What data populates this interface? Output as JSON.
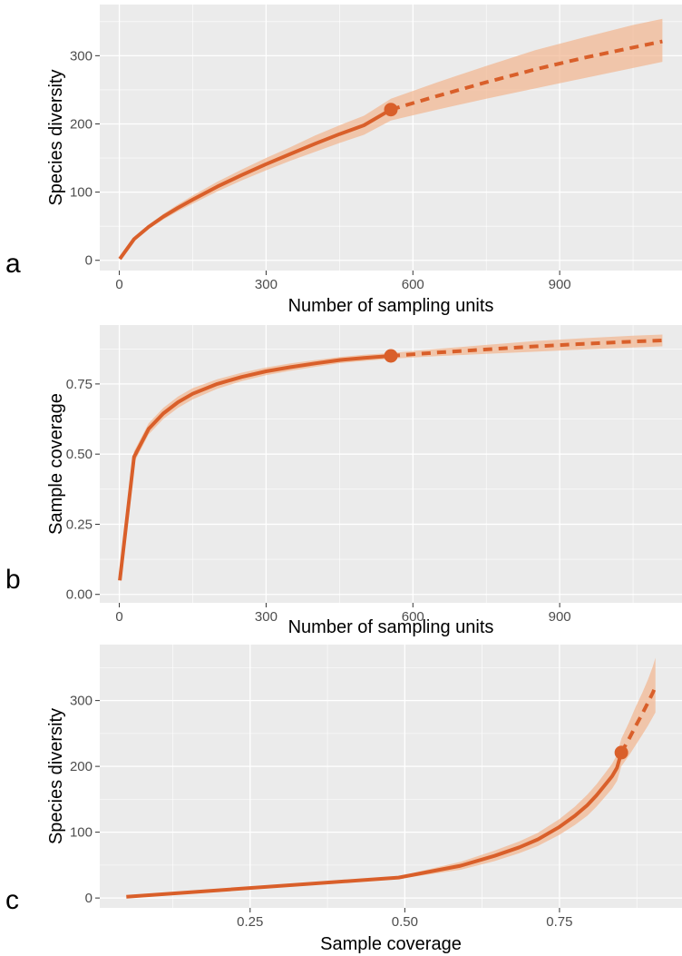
{
  "colors": {
    "series": "#d95f2a",
    "band": "#f2b58e",
    "panel_background": "#ebebeb"
  },
  "chart_data": [
    {
      "panel_label": "a",
      "type": "line",
      "xlabel": "Number of sampling units",
      "ylabel": "Species diversity",
      "xlim": [
        -40,
        1150
      ],
      "ylim": [
        -15,
        375
      ],
      "xticks": [
        0,
        300,
        600,
        900
      ],
      "yticks": [
        0,
        100,
        200,
        300
      ],
      "xtick_labels": [
        "0",
        "300",
        "600",
        "900"
      ],
      "ytick_labels": [
        "0",
        "100",
        "200",
        "300"
      ],
      "grid": true,
      "series": [
        {
          "segment": "interpolated",
          "style": "solid",
          "x": [
            1,
            30,
            60,
            90,
            120,
            150,
            200,
            250,
            300,
            350,
            400,
            450,
            500,
            555
          ],
          "y": [
            2,
            31,
            49,
            64,
            77,
            89,
            108,
            125,
            141,
            156,
            171,
            185,
            198,
            221
          ],
          "lower": [
            2,
            29,
            46,
            60,
            72,
            83,
            101,
            117,
            132,
            146,
            159,
            172,
            184,
            205
          ],
          "upper": [
            2,
            33,
            52,
            68,
            82,
            95,
            115,
            133,
            150,
            166,
            183,
            198,
            212,
            237
          ]
        },
        {
          "segment": "extrapolated",
          "style": "dashed",
          "x": [
            555,
            650,
            750,
            850,
            950,
            1050,
            1110
          ],
          "y": [
            221,
            241,
            261,
            280,
            297,
            312,
            321
          ],
          "lower": [
            205,
            221,
            237,
            252,
            267,
            282,
            291
          ],
          "upper": [
            237,
            261,
            285,
            308,
            327,
            345,
            354
          ]
        }
      ],
      "reference_point": {
        "x": 555,
        "y": 221
      }
    },
    {
      "panel_label": "b",
      "type": "line",
      "xlabel": "Number of sampling units",
      "ylabel": "Sample coverage",
      "xlim": [
        -40,
        1150
      ],
      "ylim": [
        -0.03,
        0.96
      ],
      "xticks": [
        0,
        300,
        600,
        900
      ],
      "yticks": [
        0,
        0.25,
        0.5,
        0.75
      ],
      "xtick_labels": [
        "0",
        "300",
        "600",
        "900"
      ],
      "ytick_labels": [
        "0.00",
        "0.25",
        "0.50",
        "0.75"
      ],
      "grid": true,
      "series": [
        {
          "segment": "interpolated",
          "style": "solid",
          "x": [
            1,
            30,
            60,
            90,
            120,
            150,
            200,
            250,
            300,
            350,
            400,
            450,
            500,
            555
          ],
          "y": [
            0.05,
            0.49,
            0.59,
            0.645,
            0.685,
            0.715,
            0.75,
            0.775,
            0.795,
            0.81,
            0.823,
            0.835,
            0.843,
            0.85
          ],
          "lower": [
            0.05,
            0.47,
            0.57,
            0.625,
            0.665,
            0.695,
            0.733,
            0.76,
            0.781,
            0.797,
            0.811,
            0.824,
            0.832,
            0.84
          ],
          "upper": [
            0.05,
            0.51,
            0.61,
            0.665,
            0.705,
            0.735,
            0.767,
            0.79,
            0.809,
            0.823,
            0.835,
            0.846,
            0.854,
            0.86
          ]
        },
        {
          "segment": "extrapolated",
          "style": "dashed",
          "x": [
            555,
            650,
            750,
            850,
            950,
            1050,
            1110
          ],
          "y": [
            0.85,
            0.862,
            0.873,
            0.884,
            0.893,
            0.901,
            0.905
          ],
          "lower": [
            0.84,
            0.849,
            0.857,
            0.865,
            0.873,
            0.88,
            0.884
          ],
          "upper": [
            0.86,
            0.875,
            0.889,
            0.903,
            0.913,
            0.922,
            0.926
          ]
        }
      ],
      "reference_point": {
        "x": 555,
        "y": 0.85
      }
    },
    {
      "panel_label": "c",
      "type": "line",
      "xlabel": "Sample coverage",
      "ylabel": "Species diversity",
      "xlim": [
        0.007,
        0.948
      ],
      "ylim": [
        -15,
        385
      ],
      "xticks": [
        0.25,
        0.5,
        0.75
      ],
      "yticks": [
        0,
        100,
        200,
        300
      ],
      "xtick_labels": [
        "0.25",
        "0.50",
        "0.75"
      ],
      "ytick_labels": [
        "0",
        "100",
        "200",
        "300"
      ],
      "grid": true,
      "series": [
        {
          "segment": "interpolated",
          "style": "solid",
          "x": [
            0.05,
            0.49,
            0.59,
            0.645,
            0.685,
            0.715,
            0.75,
            0.775,
            0.795,
            0.81,
            0.823,
            0.835,
            0.843,
            0.85
          ],
          "y": [
            2,
            31,
            49,
            64,
            77,
            89,
            108,
            125,
            141,
            156,
            171,
            185,
            198,
            221
          ],
          "lower": [
            2,
            29,
            43,
            56,
            68,
            79,
            96,
            111,
            125,
            139,
            153,
            166,
            178,
            200
          ],
          "upper": [
            2,
            33,
            55,
            72,
            86,
            99,
            120,
            139,
            157,
            173,
            189,
            204,
            218,
            242
          ]
        },
        {
          "segment": "extrapolated",
          "style": "dashed",
          "x": [
            0.85,
            0.862,
            0.873,
            0.884,
            0.893,
            0.901,
            0.905
          ],
          "y": [
            221,
            241,
            261,
            280,
            297,
            312,
            321
          ],
          "lower": [
            200,
            216,
            232,
            248,
            262,
            275,
            282
          ],
          "upper": [
            242,
            266,
            290,
            312,
            332,
            352,
            365
          ]
        }
      ],
      "reference_point": {
        "x": 0.85,
        "y": 221
      }
    }
  ]
}
